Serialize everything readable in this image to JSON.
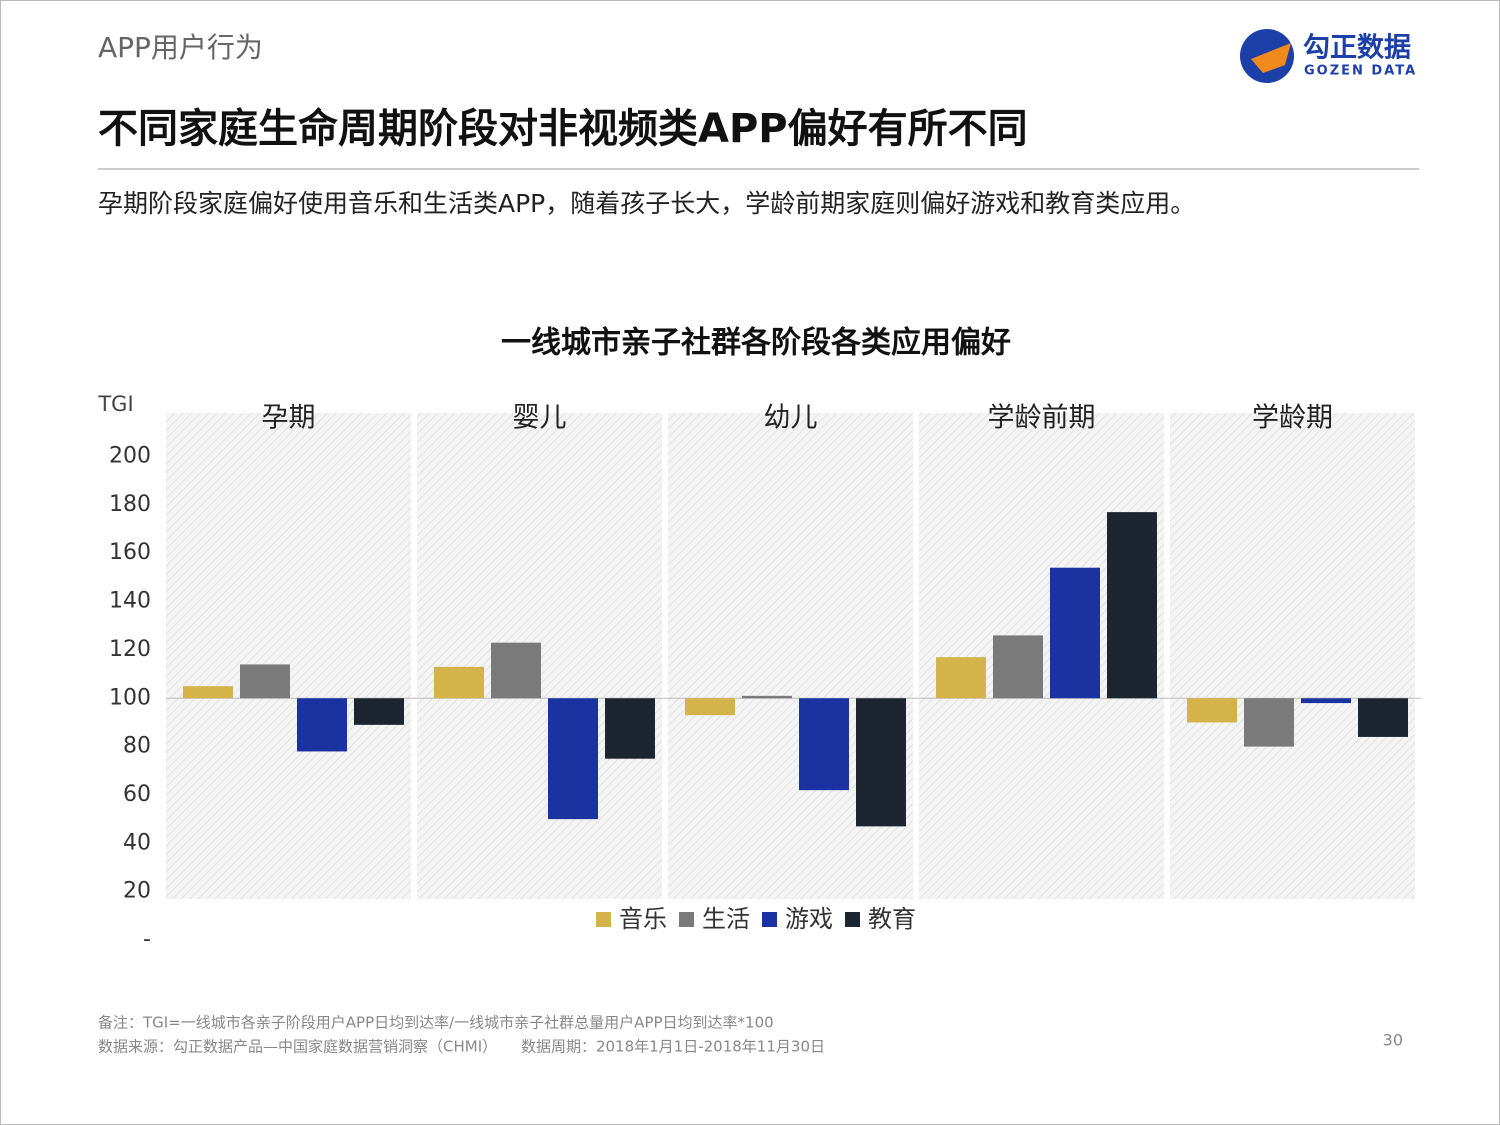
{
  "header": {
    "section": "APP用户行为",
    "logo_cn": "勾正数据",
    "logo_en": "GOZEN DATA",
    "title": "不同家庭生命周期阶段对非视频类APP偏好有所不同",
    "subtitle": "孕期阶段家庭偏好使用音乐和生活类APP，随着孩子长大，学龄前期家庭则偏好游戏和教育类应用。"
  },
  "chart_data": {
    "type": "bar",
    "title": "一线城市亲子社群各阶段各类应用偏好",
    "y_label": "TGI",
    "categories": [
      "孕期",
      "婴儿",
      "幼儿",
      "学龄前期",
      "学龄期"
    ],
    "series": [
      {
        "name": "音乐",
        "color": "#d4b44a",
        "values": [
          105,
          113,
          93,
          117,
          90
        ]
      },
      {
        "name": "生活",
        "color": "#7a7a7a",
        "values": [
          114,
          123,
          101,
          126,
          80
        ]
      },
      {
        "name": "游戏",
        "color": "#1a33a0",
        "values": [
          78,
          50,
          62,
          154,
          98
        ]
      },
      {
        "name": "教育",
        "color": "#1c2530",
        "values": [
          89,
          75,
          47,
          177,
          84
        ]
      }
    ],
    "baseline": 100,
    "ylim": [
      0,
      218
    ],
    "yticks": [
      {
        "value": 0,
        "label": "-"
      },
      20,
      40,
      60,
      80,
      100,
      120,
      140,
      160,
      180,
      200
    ]
  },
  "footer": {
    "note": "备注：TGI=一线城市各亲子阶段用户APP日均到达率/一线城市亲子社群总量用户APP日均到达率*100",
    "source": "数据来源：勾正数据产品—中国家庭数据营销洞察（CHMI）     数据周期：2018年1月1日-2018年11月30日",
    "page": "30"
  }
}
